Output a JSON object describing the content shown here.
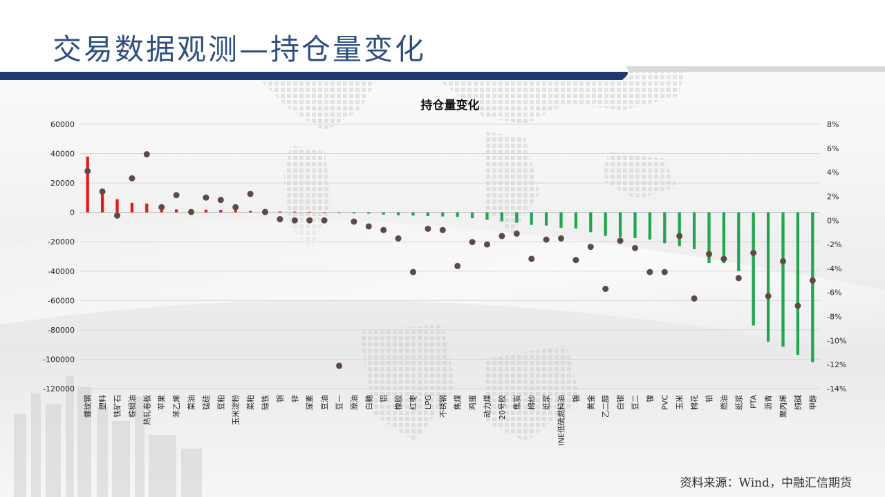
{
  "page": {
    "title": "交易数据观测—持仓量变化",
    "source": "资料来源：Wind，中融汇信期货"
  },
  "colors": {
    "positive_bar": "#e8171d",
    "negative_bar": "#21a650",
    "marker": "#5e4a45",
    "title": "#2f4f7f",
    "navy": "#1f3a70"
  },
  "chart_data": {
    "type": "bar",
    "title": "持仓量变化",
    "xlabel": "",
    "ylabel": "",
    "ylim": [
      -120000,
      60000
    ],
    "y_ticks": [
      "60000",
      "40000",
      "20000",
      "0",
      "-20000",
      "-40000",
      "-60000",
      "-80000",
      "-100000",
      "-120000"
    ],
    "y2lim": [
      -14,
      8
    ],
    "y2_ticks": [
      "8%",
      "6%",
      "4%",
      "2%",
      "0%",
      "-2%",
      "-4%",
      "-6%",
      "-8%",
      "-10%",
      "-12%",
      "-14%"
    ],
    "grid": true,
    "legend": "none",
    "categories": [
      "螺纹钢",
      "塑料",
      "铁矿石",
      "棕榈油",
      "热轧卷板",
      "苹果",
      "苯乙烯",
      "菜油",
      "锰硅",
      "豆粕",
      "玉米淀粉",
      "菜粕",
      "硅铁",
      "铜",
      "锌",
      "尿素",
      "豆油",
      "豆一",
      "原油",
      "白糖",
      "铝",
      "橡胶",
      "红枣",
      "LPG",
      "不锈钢",
      "焦煤",
      "鸡蛋",
      "动力煤",
      "20号胶",
      "焦炭",
      "棉纱",
      "纸浆",
      "INE低硫燃料油",
      "锡",
      "黄金",
      "乙二醇",
      "白银",
      "豆二",
      "镍",
      "PVC",
      "玉米",
      "棉花",
      "铅",
      "燃油",
      "纸浆2",
      "PTA",
      "沥青",
      "聚丙烯",
      "纯碱",
      "甲醇"
    ],
    "category_labels": [
      "螺纹钢",
      "塑料",
      "铁矿石",
      "棕榈油",
      "热轧卷板",
      "苹果",
      "苯乙烯",
      "菜油",
      "锰硅",
      "豆粕",
      "玉米淀粉",
      "菜粕",
      "硅铁",
      "铜",
      "锌",
      "尿素",
      "豆油",
      "豆一",
      "原油",
      "白糖",
      "铝",
      "橡胶",
      "红枣",
      "LPG",
      "不锈钢",
      "焦煤",
      "鸡蛋",
      "动力煤",
      "20号胶",
      "焦炭",
      "棉纱",
      "纸浆",
      "INE低硫燃料油",
      "锡",
      "黄金",
      "乙二醇",
      "白银",
      "豆二",
      "镍",
      "PVC",
      "玉米",
      "棉花",
      "铅",
      "燃油",
      "纸浆",
      "PTA",
      "沥青",
      "聚丙烯",
      "纯碱",
      "甲醇"
    ],
    "series": [
      {
        "axis": "left",
        "kind": "bar",
        "values": [
          38000,
          16000,
          9000,
          6500,
          6000,
          4000,
          2000,
          1800,
          1800,
          1700,
          1500,
          1000,
          600,
          600,
          500,
          400,
          0,
          -500,
          -800,
          -900,
          -1500,
          -2000,
          -2200,
          -2500,
          -2800,
          -3000,
          -4000,
          -5000,
          -6000,
          -7000,
          -8500,
          -9000,
          -10500,
          -11000,
          -13500,
          -16000,
          -17000,
          -17500,
          -18500,
          -21000,
          -23000,
          -25000,
          -34500,
          -34500,
          -40000,
          -77000,
          -88000,
          -91500,
          -97000,
          -102000
        ]
      },
      {
        "axis": "right",
        "kind": "scatter",
        "values": [
          4.1,
          2.4,
          0.4,
          3.5,
          5.5,
          1.1,
          2.1,
          0.7,
          1.9,
          1.7,
          1.1,
          2.2,
          0.7,
          0.1,
          0.0,
          0.0,
          0.0,
          -12.1,
          -0.1,
          -0.5,
          -0.8,
          -1.5,
          -4.3,
          -0.7,
          -0.8,
          -3.8,
          -1.8,
          -2.0,
          -1.3,
          -1.1,
          -3.2,
          -1.6,
          -1.5,
          -3.3,
          -2.2,
          -5.7,
          -1.7,
          -2.3,
          -4.3,
          -4.3,
          -1.3,
          -6.5,
          -2.8,
          -3.2,
          -4.8,
          -2.7,
          -6.3,
          -3.4,
          -7.1,
          -5.0
        ]
      }
    ]
  }
}
